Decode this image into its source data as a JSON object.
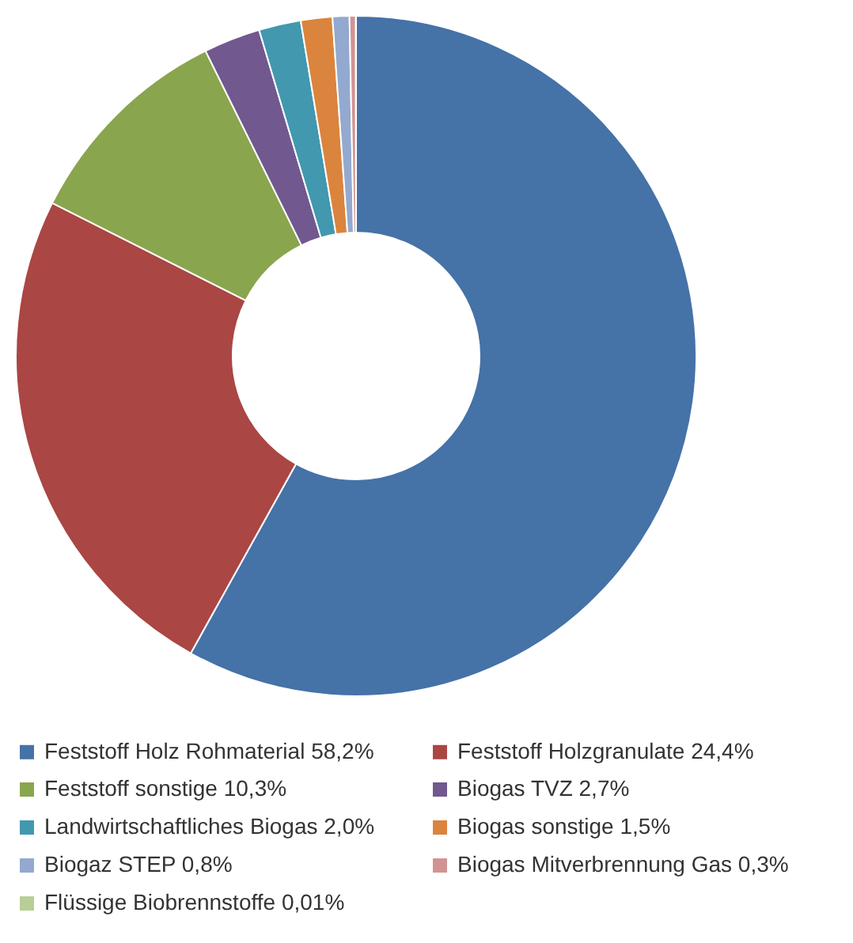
{
  "chart_data": {
    "type": "donut",
    "categories": [
      "Feststoff Holz Rohmaterial  58,2%",
      "Feststoff Holzgranulate  24,4%",
      "Feststoff sonstige  10,3%",
      "Biogas TVZ  2,7%",
      "Landwirtschaftliches Biogas  2,0%",
      "Biogas sonstige 1,5%",
      "Biogaz STEP 0,8%",
      "Biogas Mitverbrennung Gas  0,3%",
      "Flüssige Biobrennstoffe  0,01%"
    ],
    "values": [
      58.2,
      24.4,
      10.3,
      2.7,
      2.0,
      1.5,
      0.8,
      0.3,
      0.01
    ],
    "colors": [
      "#4572a7",
      "#aa4643",
      "#89a54e",
      "#71588f",
      "#4198af",
      "#db843d",
      "#93a9cf",
      "#d19392",
      "#b9cd96"
    ],
    "legend": "bottom"
  }
}
